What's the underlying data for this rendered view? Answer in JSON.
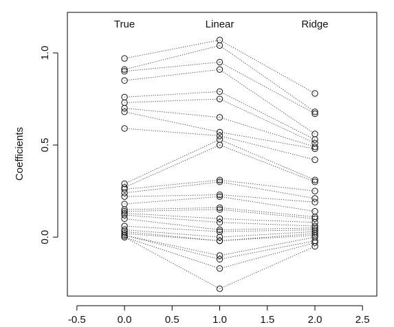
{
  "chart_data": {
    "type": "scatter",
    "ylabel": "Coefficients",
    "xlim": [
      -0.6,
      2.65
    ],
    "ylim": [
      -0.32,
      1.22
    ],
    "xticks": [
      -0.5,
      0.0,
      0.5,
      1.0,
      1.5,
      2.0,
      2.5
    ],
    "xtick_labels": [
      "-0.5",
      "0.0",
      "0.5",
      "1.0",
      "1.5",
      "2.0",
      "2.5"
    ],
    "yticks": [
      0.0,
      0.5,
      1.0
    ],
    "ytick_labels": [
      "0.0",
      "0.5",
      "1.0"
    ],
    "grid": false,
    "group_labels": [
      {
        "text": "True",
        "x": 0.0
      },
      {
        "text": "Linear",
        "x": 1.0
      },
      {
        "text": "Ridge",
        "x": 2.0
      }
    ],
    "columns_x": [
      0.0,
      1.0,
      2.0
    ],
    "coefficients": [
      [
        0.97,
        1.07,
        0.78
      ],
      [
        0.91,
        1.04,
        0.68
      ],
      [
        0.9,
        0.95,
        0.67
      ],
      [
        0.85,
        0.91,
        0.56
      ],
      [
        0.76,
        0.79,
        0.53
      ],
      [
        0.73,
        0.75,
        0.51
      ],
      [
        0.7,
        0.65,
        0.49
      ],
      [
        0.68,
        0.57,
        0.48
      ],
      [
        0.59,
        0.55,
        0.42
      ],
      [
        0.29,
        0.53,
        0.31
      ],
      [
        0.27,
        0.5,
        0.3
      ],
      [
        0.26,
        0.31,
        0.25
      ],
      [
        0.24,
        0.3,
        0.21
      ],
      [
        0.22,
        0.23,
        0.19
      ],
      [
        0.18,
        0.22,
        0.14
      ],
      [
        0.15,
        0.16,
        0.11
      ],
      [
        0.14,
        0.15,
        0.1
      ],
      [
        0.13,
        0.1,
        0.08
      ],
      [
        0.12,
        0.08,
        0.06
      ],
      [
        0.1,
        0.04,
        0.05
      ],
      [
        0.06,
        0.03,
        0.04
      ],
      [
        0.04,
        0.0,
        0.03
      ],
      [
        0.03,
        -0.02,
        0.02
      ],
      [
        0.02,
        -0.02,
        0.01
      ],
      [
        0.01,
        -0.1,
        0.0
      ],
      [
        0.01,
        -0.12,
        -0.02
      ],
      [
        0.0,
        -0.17,
        -0.03
      ],
      [
        0.0,
        -0.28,
        -0.05
      ]
    ]
  }
}
